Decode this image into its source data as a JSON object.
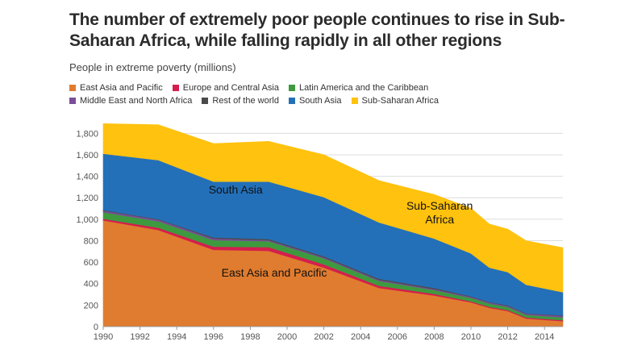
{
  "chart_data": {
    "type": "area",
    "stacked": true,
    "title": "The number of extremely poor people continues to rise in Sub-Saharan Africa, while falling rapidly in all other regions",
    "subtitle": "People in extreme poverty (millions)",
    "xlabel": "",
    "ylabel": "People in extreme poverty (millions)",
    "x": [
      1990,
      1993,
      1996,
      1999,
      2002,
      2005,
      2008,
      2010,
      2011,
      2012,
      2013,
      2015
    ],
    "x_ticks": [
      "1990",
      "1992",
      "1994",
      "1996",
      "1998",
      "2000",
      "2002",
      "2004",
      "2006",
      "2008",
      "2010",
      "2012",
      "2014"
    ],
    "y_ticks": [
      "0",
      "200",
      "400",
      "600",
      "800",
      "1,000",
      "1,200",
      "1,400",
      "1,600",
      "1,800"
    ],
    "ylim": [
      0,
      1900
    ],
    "xlim": [
      1990,
      2015
    ],
    "grid": true,
    "legend_position": "top",
    "series": [
      {
        "name": "East Asia and Pacific",
        "color": "#E07C2F",
        "values": [
          990,
          900,
          715,
          705,
          550,
          360,
          290,
          225,
          175,
          145,
          75,
          50
        ]
      },
      {
        "name": "Europe and Central Asia",
        "color": "#D41E4E",
        "values": [
          15,
          20,
          30,
          35,
          30,
          20,
          15,
          10,
          10,
          10,
          10,
          10
        ]
      },
      {
        "name": "Latin America and the Caribbean",
        "color": "#3E9A3E",
        "values": [
          60,
          60,
          60,
          55,
          55,
          45,
          35,
          32,
          30,
          28,
          25,
          25
        ]
      },
      {
        "name": "Middle East and North Africa",
        "color": "#7B4E9A",
        "values": [
          15,
          15,
          15,
          10,
          10,
          10,
          10,
          10,
          10,
          10,
          10,
          15
        ]
      },
      {
        "name": "Rest of the world",
        "color": "#4A4A4A",
        "values": [
          5,
          5,
          10,
          10,
          10,
          10,
          10,
          5,
          5,
          5,
          5,
          5
        ]
      },
      {
        "name": "South Asia",
        "color": "#2470B8",
        "values": [
          525,
          550,
          520,
          535,
          550,
          525,
          460,
          400,
          320,
          310,
          265,
          215
        ]
      },
      {
        "name": "Sub-Saharan Africa",
        "color": "#FFC20E",
        "values": [
          280,
          330,
          355,
          375,
          395,
          390,
          410,
          420,
          405,
          400,
          410,
          415
        ]
      }
    ],
    "annotations": [
      {
        "text": "South Asia",
        "series": "South Asia"
      },
      {
        "text": "Sub-Saharan Africa",
        "series": "Sub-Saharan Africa"
      },
      {
        "text": "East Asia and Pacific",
        "series": "East Asia and Pacific"
      }
    ]
  },
  "annotation_lines": {
    "south_asia": [
      "South Asia"
    ],
    "sub_saharan": [
      "Sub-Saharan",
      "Africa"
    ],
    "east_asia": [
      "East Asia and Pacific"
    ]
  }
}
